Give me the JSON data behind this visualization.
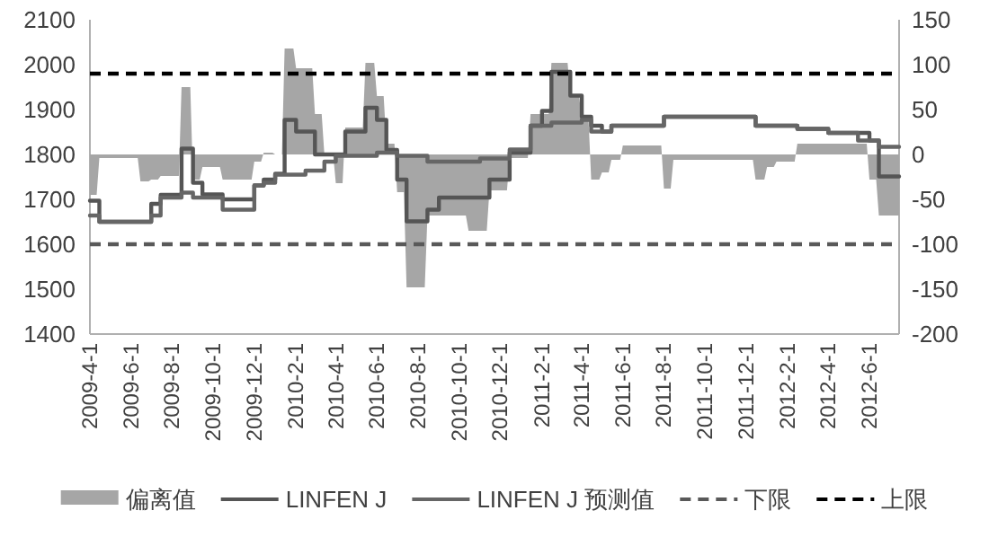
{
  "chart_data": {
    "type": "step",
    "legend": "bottom",
    "xlim": [
      "2009-04-01",
      "2012-07-15"
    ],
    "xticks": [
      {
        "value": "2009-04-01",
        "label": "2009-4-1"
      },
      {
        "value": "2009-06-01",
        "label": "2009-6-1"
      },
      {
        "value": "2009-08-01",
        "label": "2009-8-1"
      },
      {
        "value": "2009-10-01",
        "label": "2009-10-1"
      },
      {
        "value": "2009-12-01",
        "label": "2009-12-1"
      },
      {
        "value": "2010-02-01",
        "label": "2010-2-1"
      },
      {
        "value": "2010-04-01",
        "label": "2010-4-1"
      },
      {
        "value": "2010-06-01",
        "label": "2010-6-1"
      },
      {
        "value": "2010-08-01",
        "label": "2010-8-1"
      },
      {
        "value": "2010-10-01",
        "label": "2010-10-1"
      },
      {
        "value": "2010-12-01",
        "label": "2010-12-1"
      },
      {
        "value": "2011-02-01",
        "label": "2011-2-1"
      },
      {
        "value": "2011-04-01",
        "label": "2011-4-1"
      },
      {
        "value": "2011-06-01",
        "label": "2011-6-1"
      },
      {
        "value": "2011-08-01",
        "label": "2011-8-1"
      },
      {
        "value": "2011-10-01",
        "label": "2011-10-1"
      },
      {
        "value": "2011-12-01",
        "label": "2011-12-1"
      },
      {
        "value": "2012-02-01",
        "label": "2012-2-1"
      },
      {
        "value": "2012-04-01",
        "label": "2012-4-1"
      },
      {
        "value": "2012-06-01",
        "label": "2012-6-1"
      }
    ],
    "ylim": [
      1400,
      2100
    ],
    "yticks": [
      1400,
      1500,
      1600,
      1700,
      1800,
      1900,
      2000,
      2100
    ],
    "y2lim": [
      -200,
      150
    ],
    "y2ticks": [
      -200,
      -150,
      -100,
      -50,
      0,
      50,
      100,
      150
    ],
    "series": [
      {
        "name": "偏离值",
        "type": "area",
        "axis": "y2",
        "color": "#a6a6a6",
        "x": [
          "2009-04-01",
          "2009-04-11",
          "2009-04-15",
          "2009-06-11",
          "2009-06-15",
          "2009-06-27",
          "2009-07-01",
          "2009-07-11",
          "2009-07-15",
          "2009-08-11",
          "2009-08-15",
          "2009-08-28",
          "2009-09-01",
          "2009-09-11",
          "2009-09-15",
          "2009-10-11",
          "2009-10-15",
          "2009-11-27",
          "2009-12-01",
          "2009-12-11",
          "2009-12-15",
          "2009-12-28",
          "2010-01-01",
          "2010-01-11",
          "2010-01-15",
          "2010-01-28",
          "2010-02-01",
          "2010-02-25",
          "2010-03-01",
          "2010-03-11",
          "2010-03-15",
          "2010-03-28",
          "2010-04-01",
          "2010-04-11",
          "2010-04-15",
          "2010-05-11",
          "2010-05-15",
          "2010-05-28",
          "2010-06-01",
          "2010-06-11",
          "2010-06-15",
          "2010-06-27",
          "2010-07-01",
          "2010-07-11",
          "2010-07-15",
          "2010-08-11",
          "2010-08-15",
          "2010-10-11",
          "2010-10-15",
          "2010-11-11",
          "2010-11-15",
          "2010-12-11",
          "2010-12-15",
          "2011-01-11",
          "2011-01-15",
          "2011-02-11",
          "2011-02-15",
          "2011-03-11",
          "2011-03-15",
          "2011-03-28",
          "2011-04-01",
          "2011-04-11",
          "2011-04-15",
          "2011-04-27",
          "2011-05-01",
          "2011-05-11",
          "2011-05-15",
          "2011-05-28",
          "2011-06-01",
          "2011-07-28",
          "2011-08-01",
          "2011-08-11",
          "2011-08-15",
          "2011-12-11",
          "2011-12-15",
          "2011-12-28",
          "2012-01-01",
          "2012-01-11",
          "2012-01-15",
          "2012-02-11",
          "2012-02-15",
          "2012-05-28",
          "2012-06-01",
          "2012-06-11",
          "2012-06-15",
          "2012-07-15"
        ],
        "values": [
          -45,
          -45,
          -4,
          -4,
          -30,
          -30,
          -28,
          -28,
          -24,
          -24,
          75,
          75,
          -28,
          -28,
          -14,
          -14,
          -28,
          -28,
          -8,
          -8,
          2,
          2,
          0,
          0,
          118,
          118,
          96,
          96,
          45,
          45,
          0,
          0,
          -32,
          -32,
          30,
          30,
          102,
          102,
          65,
          65,
          12,
          12,
          -42,
          -42,
          -148,
          -148,
          -68,
          -68,
          -85,
          -85,
          -40,
          -40,
          -4,
          -4,
          45,
          45,
          102,
          102,
          65,
          65,
          40,
          40,
          -28,
          -28,
          -20,
          -20,
          -6,
          -6,
          10,
          10,
          -38,
          -38,
          -6,
          -6,
          -28,
          -28,
          -14,
          -14,
          -8,
          -8,
          12,
          12,
          -28,
          -28,
          -68,
          -68
        ]
      },
      {
        "name": "LINFEN J",
        "color": "#555555",
        "x": [
          "2009-04-01",
          "2009-04-15",
          "2009-07-01",
          "2009-07-15",
          "2009-08-15",
          "2009-09-01",
          "2009-09-15",
          "2009-10-15",
          "2009-12-01",
          "2009-12-15",
          "2010-01-01",
          "2010-01-15",
          "2010-02-01",
          "2010-03-01",
          "2010-04-15",
          "2010-05-15",
          "2010-06-01",
          "2010-06-15",
          "2010-07-01",
          "2010-07-15",
          "2010-08-15",
          "2010-09-01",
          "2010-11-15",
          "2010-12-15",
          "2011-01-15",
          "2011-02-01",
          "2011-02-15",
          "2011-03-15",
          "2011-04-01",
          "2011-04-15",
          "2011-05-01",
          "2011-05-15",
          "2011-08-01",
          "2011-12-15",
          "2012-02-15",
          "2012-04-01",
          "2012-06-01",
          "2012-06-15",
          "2012-07-15"
        ],
        "values": [
          1697,
          1650,
          1690,
          1710,
          1813,
          1737,
          1711,
          1700,
          1731,
          1744,
          1757,
          1877,
          1851,
          1800,
          1851,
          1904,
          1877,
          1810,
          1744,
          1651,
          1677,
          1704,
          1744,
          1804,
          1864,
          1897,
          1984,
          1931,
          1884,
          1864,
          1851,
          1864,
          1884,
          1864,
          1857,
          1848,
          1831,
          1751,
          1751
        ]
      },
      {
        "name": "LINFEN J 预测值",
        "color": "#666666",
        "x": [
          "2009-04-01",
          "2009-04-15",
          "2009-07-01",
          "2009-07-15",
          "2009-08-15",
          "2009-09-01",
          "2009-10-15",
          "2009-12-01",
          "2009-12-15",
          "2010-01-01",
          "2010-02-15",
          "2010-03-15",
          "2010-04-01",
          "2010-06-01",
          "2010-07-01",
          "2010-08-15",
          "2010-11-01",
          "2010-12-15",
          "2011-01-15",
          "2011-02-15",
          "2011-04-01",
          "2011-04-15",
          "2011-05-15",
          "2011-08-01",
          "2011-12-15",
          "2012-02-15",
          "2012-04-01",
          "2012-05-15",
          "2012-06-15",
          "2012-07-15"
        ],
        "values": [
          1664,
          1650,
          1664,
          1704,
          1715,
          1704,
          1677,
          1731,
          1737,
          1755,
          1764,
          1784,
          1797,
          1804,
          1797,
          1784,
          1791,
          1811,
          1864,
          1871,
          1877,
          1851,
          1864,
          1884,
          1864,
          1857,
          1848,
          1831,
          1817,
          1817
        ]
      }
    ],
    "ref_lines": [
      {
        "axis": "y2",
        "value": -100,
        "label": "下限",
        "color": "#595959",
        "line_style": "dashed"
      },
      {
        "axis": "y2",
        "value": 90,
        "label": "上限",
        "color": "#000000",
        "line_style": "dashed"
      }
    ]
  }
}
